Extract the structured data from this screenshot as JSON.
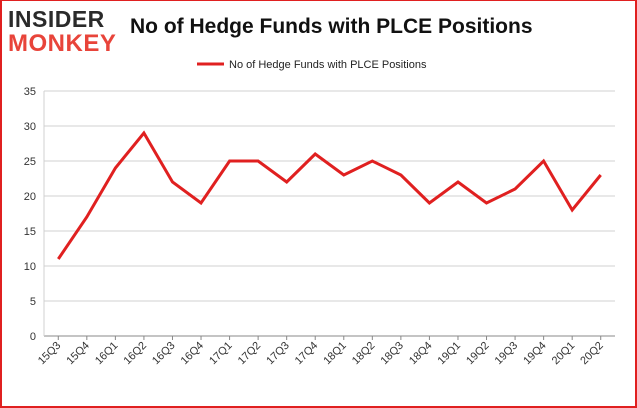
{
  "brand": {
    "line1": "INSIDER",
    "line2": "MONKEY"
  },
  "colors": {
    "series": "#e02020",
    "grid": "#d0d0d0",
    "axis": "#888888",
    "frame": "#e02020"
  },
  "chart_data": {
    "type": "line",
    "title": "No of Hedge Funds with PLCE Positions",
    "xlabel": "",
    "ylabel": "",
    "ylim": [
      0,
      35
    ],
    "yticks": [
      0,
      5,
      10,
      15,
      20,
      25,
      30,
      35
    ],
    "grid": true,
    "legend_position": "top",
    "categories": [
      "15Q3",
      "15Q4",
      "16Q1",
      "16Q2",
      "16Q3",
      "16Q4",
      "17Q1",
      "17Q2",
      "17Q3",
      "17Q4",
      "18Q1",
      "18Q2",
      "18Q3",
      "18Q4",
      "19Q1",
      "19Q2",
      "19Q3",
      "19Q4",
      "20Q1",
      "20Q2"
    ],
    "series": [
      {
        "name": "No of Hedge Funds with PLCE Positions",
        "values": [
          11,
          17,
          24,
          29,
          22,
          19,
          25,
          25,
          22,
          26,
          23,
          25,
          23,
          19,
          22,
          19,
          21,
          25,
          18,
          23
        ]
      }
    ]
  }
}
